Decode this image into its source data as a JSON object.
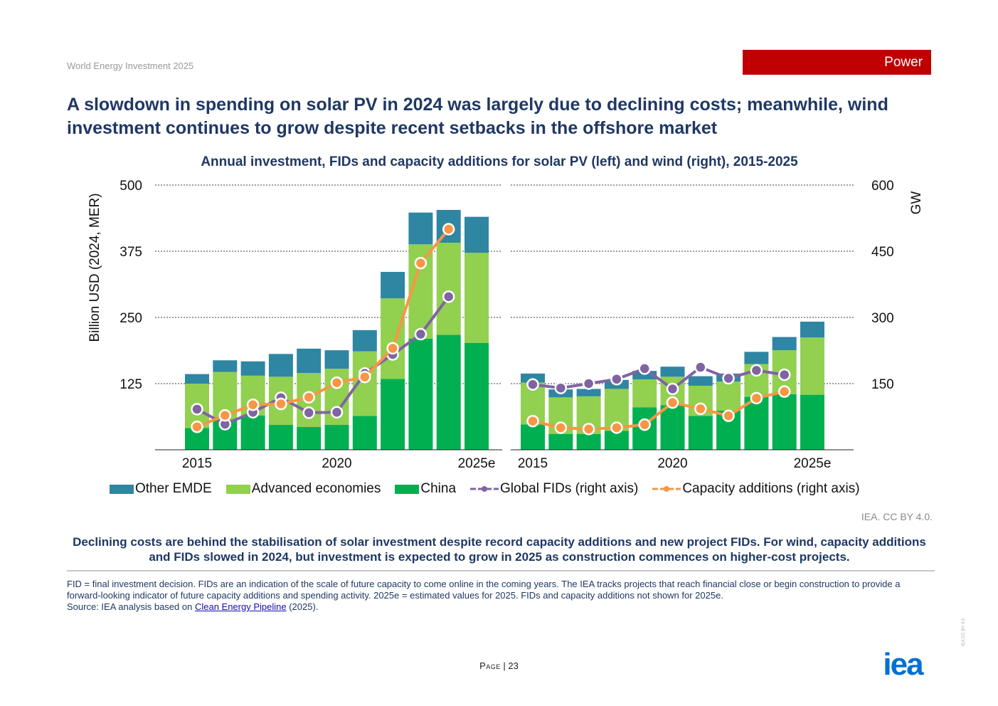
{
  "header": {
    "source": "World Energy Investment 2025",
    "section": "Power"
  },
  "headline": "A slowdown in spending on solar PV in 2024 was largely due to declining costs; meanwhile, wind investment continues to grow despite recent setbacks in the offshore market",
  "colors": {
    "other_emde": "#2e86a3",
    "advanced": "#92d050",
    "china": "#00b050",
    "fids": "#8064a2",
    "capacity": "#f79646",
    "title": "#1f3864",
    "badge": "#c00000",
    "logo": "#0070d4"
  },
  "chart_data": {
    "type": "bar",
    "title": "Annual investment, FIDs and capacity additions for solar PV (left) and wind (right), 2015-2025",
    "ylabel": "Billion USD (2024, MER)",
    "y2label": "GW",
    "ylim": [
      0,
      500
    ],
    "y2lim": [
      0,
      600
    ],
    "yticks": [
      "125",
      "250",
      "375",
      "500"
    ],
    "y2ticks": [
      "150",
      "300",
      "450",
      "600"
    ],
    "grid": true,
    "stacked": true,
    "legend_position": "bottom",
    "legend": {
      "other_emde": "Other EMDE",
      "advanced": "Advanced economies",
      "china": "China",
      "fids": "Global FIDs (right axis)",
      "capacity": "Capacity additions (right axis)"
    },
    "panels": [
      {
        "name": "Solar PV",
        "categories": [
          "2015",
          "2016",
          "2017",
          "2018",
          "2019",
          "2020",
          "2021",
          "2022",
          "2023",
          "2024",
          "2025e"
        ],
        "tick_labels": [
          "2015",
          "2020",
          "2025e"
        ],
        "tick_indices": [
          0,
          5,
          10
        ],
        "series": [
          {
            "key": "china",
            "values": [
              41,
              57,
              65,
              47,
              43,
              47,
              64,
              134,
              210,
              217,
              202
            ]
          },
          {
            "key": "advanced",
            "values": [
              84,
              90,
              75,
              91,
              102,
              106,
              122,
              152,
              178,
              174,
              170
            ]
          },
          {
            "key": "other_emde",
            "values": [
              18,
              22,
              27,
              43,
              46,
              35,
              40,
              50,
              60,
              62,
              68
            ]
          }
        ],
        "fids_gw": [
          92,
          58,
          85,
          118,
          84,
          85,
          173,
          216,
          262,
          347
        ],
        "capacity_gw": [
          52,
          78,
          102,
          104,
          119,
          152,
          165,
          230,
          423,
          500
        ]
      },
      {
        "name": "Wind",
        "categories": [
          "2015",
          "2016",
          "2017",
          "2018",
          "2019",
          "2020",
          "2021",
          "2022",
          "2023",
          "2024",
          "2025e"
        ],
        "tick_labels": [
          "2015",
          "2020",
          "2025e"
        ],
        "tick_indices": [
          0,
          5,
          10
        ],
        "series": [
          {
            "key": "china",
            "values": [
              48,
              30,
              30,
              36,
              80,
              84,
              64,
              74,
              100,
              105,
              104
            ]
          },
          {
            "key": "advanced",
            "values": [
              79,
              69,
              71,
              79,
              53,
              54,
              57,
              55,
              62,
              83,
              108
            ]
          },
          {
            "key": "other_emde",
            "values": [
              17,
              15,
              14,
              17,
              16,
              19,
              18,
              15,
              23,
              25,
              30
            ]
          }
        ],
        "fids_gw": [
          148,
          140,
          150,
          160,
          184,
          138,
          187,
          162,
          180,
          170
        ],
        "capacity_gw": [
          65,
          50,
          47,
          50,
          57,
          107,
          93,
          77,
          117,
          132
        ]
      }
    ]
  },
  "credit": "IEA. CC BY 4.0.",
  "caption": "Declining costs are behind the stabilisation of solar investment despite record capacity additions and new project FIDs. For wind, capacity additions and FIDs slowed in 2024, but investment is expected to grow in 2025 as construction commences on higher-cost projects.",
  "notes": {
    "text1": "FID = final investment decision. FIDs are an indication of the scale of future capacity to come online in the coming years. The IEA tracks projects that reach financial close or begin construction to provide a forward-looking indicator of future capacity additions and spending activity. 2025e = estimated values for 2025. FIDs and capacity additions not shown for 2025e.",
    "source_prefix": "Source: IEA analysis based on ",
    "source_link": "Clean Energy Pipeline",
    "source_suffix": " (2025)."
  },
  "footer": {
    "page_word": "Page",
    "page_number": "23",
    "logo_text": "iea",
    "side_credit": "IEA CC BY 4.0"
  }
}
